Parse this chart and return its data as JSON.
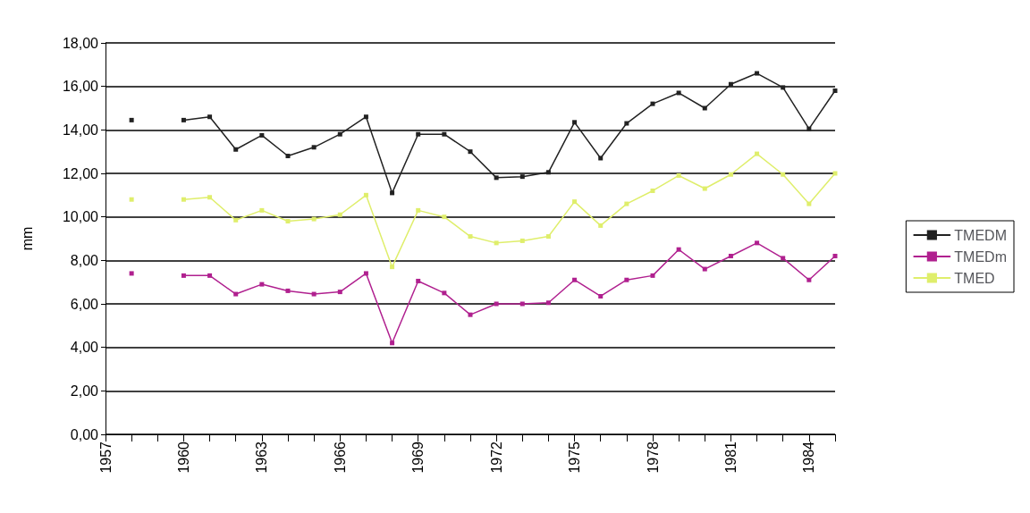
{
  "chart_data": {
    "type": "line",
    "ylabel": "mm",
    "x": [
      1958,
      1959,
      1960,
      1961,
      1962,
      1963,
      1964,
      1965,
      1966,
      1967,
      1968,
      1969,
      1970,
      1971,
      1972,
      1973,
      1974,
      1975,
      1976,
      1977,
      1978,
      1979,
      1980,
      1981,
      1982,
      1983,
      1984,
      1985
    ],
    "series": [
      {
        "name": "TMEDM",
        "color": "#222222",
        "values": [
          14.45,
          null,
          14.45,
          14.6,
          13.1,
          13.75,
          12.8,
          13.2,
          13.8,
          14.6,
          11.1,
          13.8,
          13.8,
          13.0,
          11.8,
          11.85,
          12.05,
          14.35,
          12.7,
          14.3,
          15.2,
          15.7,
          15.0,
          16.1,
          16.6,
          15.95,
          14.05,
          15.8
        ]
      },
      {
        "name": "TMEDm",
        "color": "#b0208f",
        "values": [
          7.4,
          null,
          7.3,
          7.3,
          6.45,
          6.9,
          6.6,
          6.45,
          6.55,
          7.4,
          4.2,
          7.05,
          6.5,
          5.5,
          6.0,
          6.0,
          6.05,
          7.1,
          6.35,
          7.1,
          7.3,
          8.5,
          7.6,
          8.2,
          8.8,
          8.1,
          7.1,
          8.2
        ]
      },
      {
        "name": "TMED",
        "color": "#dfee6b",
        "values": [
          10.8,
          null,
          10.8,
          10.9,
          9.85,
          10.3,
          9.8,
          9.9,
          10.1,
          11.0,
          7.7,
          10.3,
          10.0,
          9.1,
          8.8,
          8.9,
          9.1,
          10.7,
          9.6,
          10.6,
          11.2,
          11.9,
          11.3,
          11.95,
          12.9,
          11.95,
          10.6,
          12.0
        ]
      }
    ],
    "xlim": [
      1957,
      1985
    ],
    "xticks": [
      1957,
      {
        "value": 1958,
        "label": null
      },
      {
        "value": 1959,
        "label": null
      },
      1960,
      {
        "value": 1961,
        "label": null
      },
      {
        "value": 1962,
        "label": null
      },
      1963,
      {
        "value": 1964,
        "label": null
      },
      {
        "value": 1965,
        "label": null
      },
      1966,
      {
        "value": 1967,
        "label": null
      },
      {
        "value": 1968,
        "label": null
      },
      1969,
      {
        "value": 1970,
        "label": null
      },
      {
        "value": 1971,
        "label": null
      },
      1972,
      {
        "value": 1973,
        "label": null
      },
      {
        "value": 1974,
        "label": null
      },
      1975,
      {
        "value": 1976,
        "label": null
      },
      {
        "value": 1977,
        "label": null
      },
      1978,
      {
        "value": 1979,
        "label": null
      },
      {
        "value": 1980,
        "label": null
      },
      1981,
      {
        "value": 1982,
        "label": null
      },
      {
        "value": 1983,
        "label": null
      },
      1984,
      {
        "value": 1985,
        "label": null
      }
    ],
    "ylim": [
      0,
      18
    ],
    "yticks": [
      {
        "value": 0,
        "label": "0,00"
      },
      {
        "value": 2,
        "label": "2,00"
      },
      {
        "value": 4,
        "label": "4,00"
      },
      {
        "value": 6,
        "label": "6,00"
      },
      {
        "value": 8,
        "label": "8,00"
      },
      {
        "value": 10,
        "label": "10,00"
      },
      {
        "value": 12,
        "label": "12,00"
      },
      {
        "value": 14,
        "label": "14,00"
      },
      {
        "value": 16,
        "label": "16,00"
      },
      {
        "value": 18,
        "label": "18,00"
      }
    ],
    "grid": "y",
    "legend": "right",
    "marker": "square",
    "line_style": "solid"
  }
}
